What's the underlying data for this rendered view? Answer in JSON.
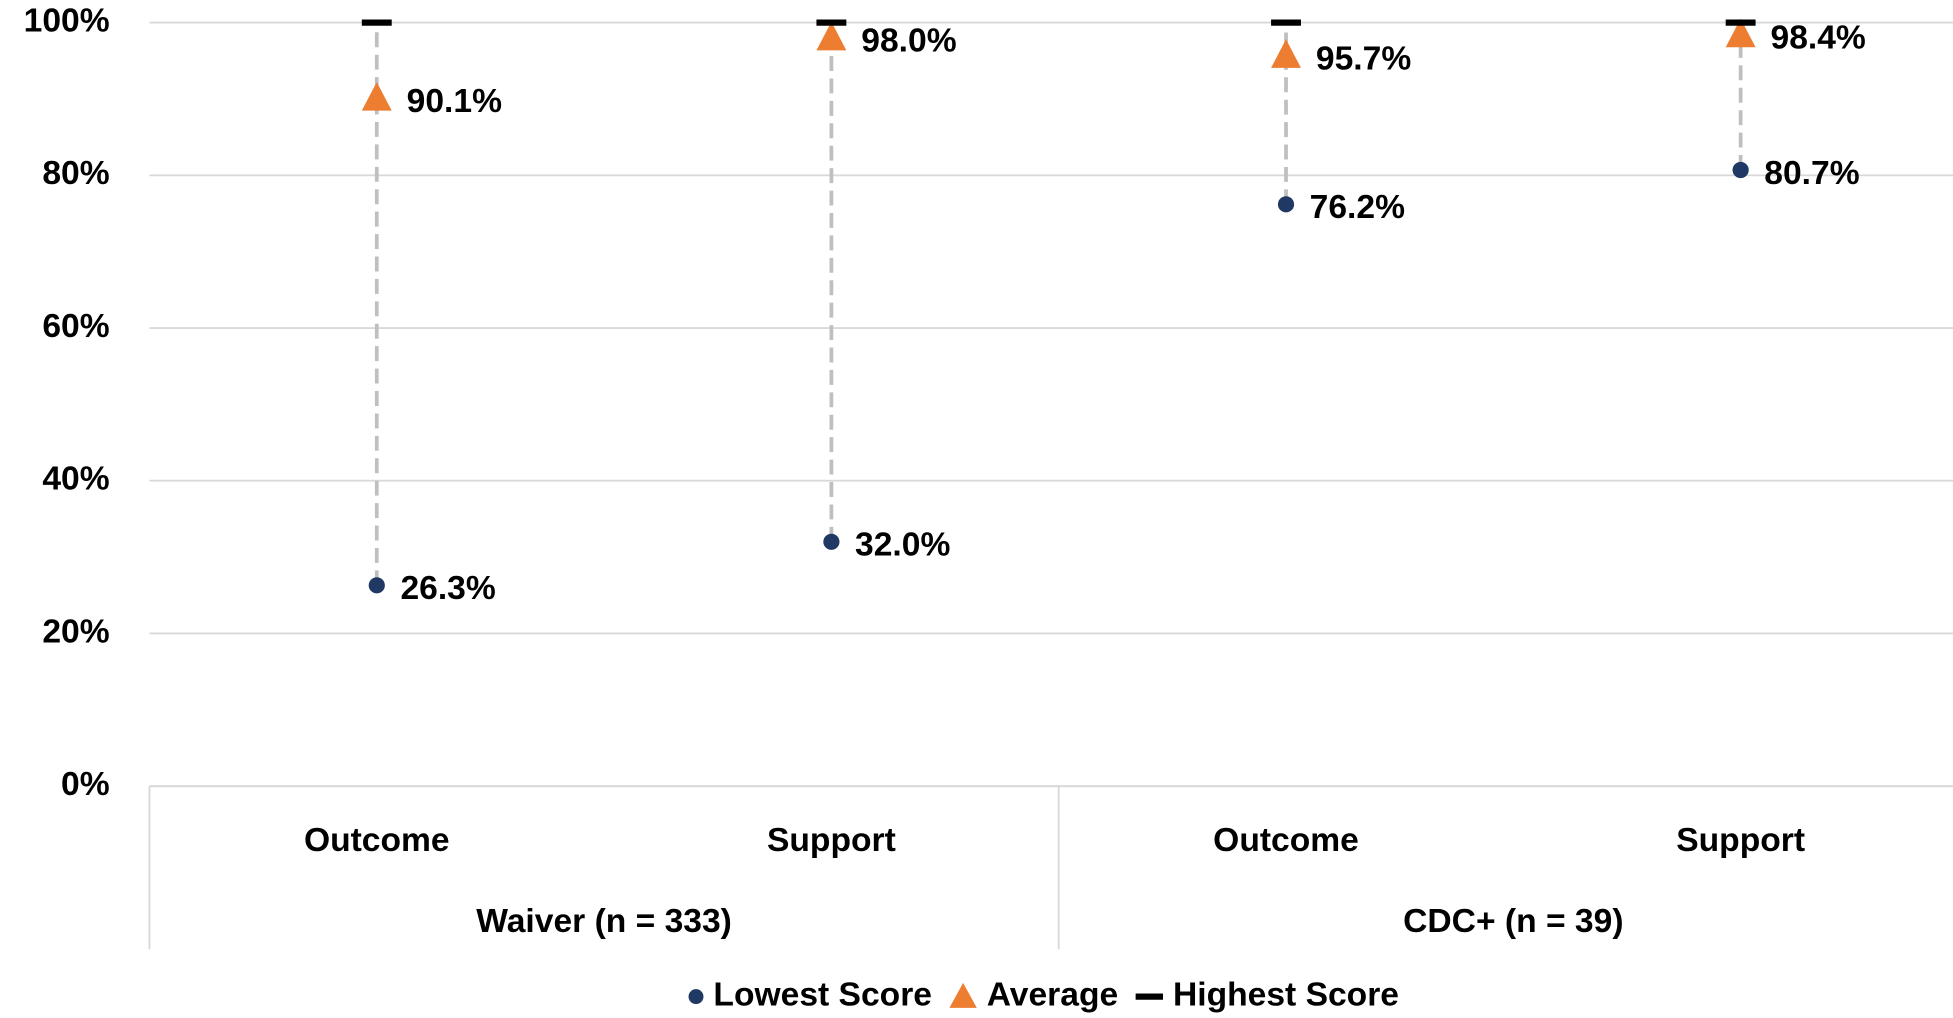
{
  "chart_data": {
    "type": "range-dot",
    "categories": [
      "Outcome",
      "Support",
      "Outcome",
      "Support"
    ],
    "groups": [
      "Waiver (n = 333)",
      "CDC+ (n = 39)"
    ],
    "ylim": [
      0,
      100
    ],
    "yticks": [
      {
        "value": 0,
        "label": "0%"
      },
      {
        "value": 20,
        "label": "20%"
      },
      {
        "value": 40,
        "label": "40%"
      },
      {
        "value": 60,
        "label": "60%"
      },
      {
        "value": 80,
        "label": "80%"
      },
      {
        "value": 100,
        "label": "100%"
      }
    ],
    "grid": true,
    "legend": "bottom",
    "series": [
      {
        "name": "Lowest Score",
        "color": "#1f3864",
        "marker": "circle",
        "values": [
          26.3,
          32.0,
          76.2,
          80.7
        ],
        "value_labels": [
          "26.3%",
          "32.0%",
          "76.2%",
          "80.7%"
        ]
      },
      {
        "name": "Average",
        "color": "#ed7d31",
        "marker": "triangle",
        "values": [
          90.1,
          98.0,
          95.7,
          98.4
        ],
        "value_labels": [
          "90.1%",
          "98.0%",
          "95.7%",
          "98.4%"
        ]
      },
      {
        "name": "Highest Score",
        "color": "#000000",
        "marker": "dash",
        "values": [
          100,
          100,
          100,
          100
        ]
      }
    ]
  }
}
